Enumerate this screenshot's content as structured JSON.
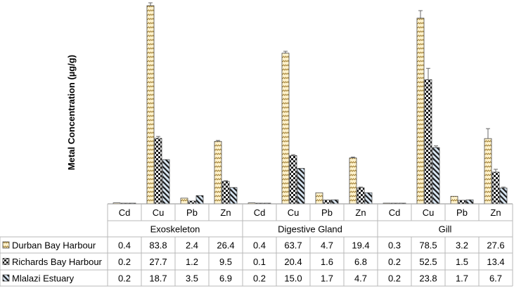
{
  "chart_data": {
    "type": "bar",
    "ylabel": "Metal Concentration (µg/g)",
    "metals": [
      "Cd",
      "Cu",
      "Pb",
      "Zn"
    ],
    "groups": [
      "Exoskeleton",
      "Digestive Gland",
      "Gill"
    ],
    "ylim": [
      0,
      85
    ],
    "series": [
      {
        "name": "Durban Bay Harbour",
        "fill": "#fff2cc",
        "pattern": "zigzag",
        "values": [
          0.4,
          83.8,
          2.4,
          26.4,
          0.4,
          63.7,
          4.7,
          19.4,
          0.3,
          78.5,
          3.2,
          27.6
        ],
        "labels": [
          "0.4",
          "83.8",
          "2.4",
          "26.4",
          "0.4",
          "63.7",
          "4.7",
          "19.4",
          "0.3",
          "78.5",
          "3.2",
          "27.6"
        ],
        "errors": [
          0,
          1.2,
          0,
          0.4,
          0,
          0.8,
          0,
          0.4,
          0,
          3.2,
          0,
          4.2
        ]
      },
      {
        "name": "Richards Bay Harbour",
        "fill": "#1a1a1a",
        "pattern": "checker",
        "values": [
          0.2,
          27.7,
          1.2,
          9.5,
          0.1,
          20.4,
          1.6,
          6.8,
          0.2,
          52.5,
          1.5,
          13.4
        ],
        "labels": [
          "0.2",
          "27.7",
          "1.2",
          "9.5",
          "0.1",
          "20.4",
          "1.6",
          "6.8",
          "0.2",
          "52.5",
          "1.5",
          "13.4"
        ],
        "errors": [
          0,
          0.8,
          0,
          0.3,
          0,
          0.4,
          0,
          0.3,
          0,
          4.8,
          0,
          1.2
        ]
      },
      {
        "name": "Mlalazi Estuary",
        "fill": "#dbe9f6",
        "pattern": "stripes",
        "values": [
          0.2,
          18.7,
          3.5,
          6.9,
          0.2,
          15.0,
          1.7,
          4.7,
          0.2,
          23.8,
          1.7,
          6.7
        ],
        "labels": [
          "0.2",
          "18.7",
          "3.5",
          "6.9",
          "0.2",
          "15.0",
          "1.7",
          "4.7",
          "0.2",
          "23.8",
          "1.7",
          "6.7"
        ],
        "errors": [
          0,
          0,
          0,
          0,
          0,
          0,
          0,
          0,
          0,
          0.7,
          0,
          0.4
        ]
      }
    ]
  }
}
